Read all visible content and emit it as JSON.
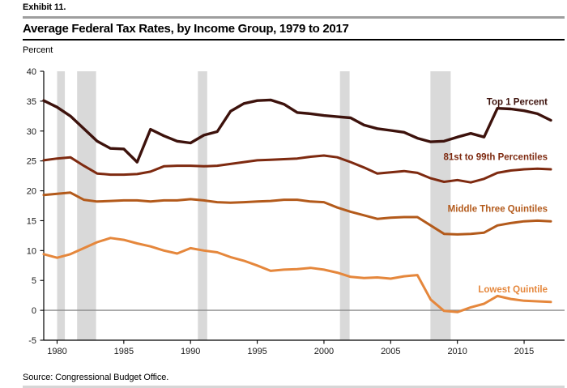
{
  "page": {
    "exhibit_label": "Exhibit 11.",
    "title": "Average Federal Tax Rates, by Income Group, 1979 to 2017",
    "unit_label": "Percent",
    "source": "Source: Congressional Budget Office."
  },
  "colors": {
    "axis": "#000000",
    "tick_text": "#1a1a1a",
    "zero_line": "#8c8c8c",
    "recession_band": "#d9d9d9",
    "header_rule_gray": "#9e9e9e",
    "header_rule_black": "#000000"
  },
  "chart_data": {
    "type": "line",
    "title": "Average Federal Tax Rates, by Income Group, 1979 to 2017",
    "xlabel": "",
    "ylabel": "Percent",
    "xlim": [
      1979,
      2017
    ],
    "ylim": [
      -5,
      40
    ],
    "xticks": [
      1980,
      1985,
      1990,
      1995,
      2000,
      2005,
      2010,
      2015
    ],
    "yticks": [
      -5,
      0,
      5,
      10,
      15,
      20,
      25,
      30,
      35,
      40
    ],
    "grid": false,
    "zero_line": true,
    "legend_position": "inline-right",
    "recession_bands": [
      [
        1980.0,
        1980.58
      ],
      [
        1981.5,
        1982.92
      ],
      [
        1990.55,
        1991.25
      ],
      [
        2001.2,
        2001.92
      ],
      [
        2007.98,
        2009.5
      ]
    ],
    "x": [
      1979,
      1980,
      1981,
      1982,
      1983,
      1984,
      1985,
      1986,
      1987,
      1988,
      1989,
      1990,
      1991,
      1992,
      1993,
      1994,
      1995,
      1996,
      1997,
      1998,
      1999,
      2000,
      2001,
      2002,
      2003,
      2004,
      2005,
      2006,
      2007,
      2008,
      2009,
      2010,
      2011,
      2012,
      2013,
      2014,
      2015,
      2016,
      2017
    ],
    "series": [
      {
        "name": "Top 1 Percent",
        "color": "#3d120c",
        "line_width": 3.4,
        "values": [
          35.1,
          34.0,
          32.5,
          30.4,
          28.3,
          27.1,
          27.0,
          24.8,
          30.3,
          29.2,
          28.3,
          28.0,
          29.3,
          29.9,
          33.3,
          34.6,
          35.1,
          35.2,
          34.5,
          33.1,
          32.9,
          32.6,
          32.4,
          32.2,
          31.0,
          30.4,
          30.1,
          29.8,
          28.8,
          28.2,
          28.3,
          29.0,
          29.6,
          29.0,
          33.8,
          33.7,
          33.4,
          32.9,
          31.8
        ]
      },
      {
        "name": "81st to 99th Percentiles",
        "color": "#7e2a10",
        "line_width": 3.0,
        "values": [
          25.1,
          25.4,
          25.6,
          24.2,
          22.9,
          22.7,
          22.7,
          22.8,
          23.2,
          24.1,
          24.2,
          24.2,
          24.1,
          24.2,
          24.5,
          24.8,
          25.1,
          25.2,
          25.3,
          25.4,
          25.7,
          25.9,
          25.6,
          24.8,
          23.9,
          22.9,
          23.1,
          23.3,
          23.0,
          22.1,
          21.5,
          21.8,
          21.4,
          22.0,
          23.0,
          23.4,
          23.6,
          23.7,
          23.6
        ]
      },
      {
        "name": "Middle Three Quintiles",
        "color": "#b35a1b",
        "line_width": 3.0,
        "values": [
          19.3,
          19.5,
          19.7,
          18.5,
          18.2,
          18.3,
          18.4,
          18.4,
          18.2,
          18.4,
          18.4,
          18.6,
          18.4,
          18.1,
          18.0,
          18.1,
          18.2,
          18.3,
          18.5,
          18.5,
          18.2,
          18.1,
          17.2,
          16.5,
          15.9,
          15.3,
          15.5,
          15.6,
          15.6,
          14.2,
          12.8,
          12.7,
          12.8,
          13.0,
          14.2,
          14.6,
          14.9,
          15.0,
          14.9
        ]
      },
      {
        "name": "Lowest Quintile",
        "color": "#e5873c",
        "line_width": 3.0,
        "values": [
          9.4,
          8.8,
          9.4,
          10.4,
          11.4,
          12.1,
          11.8,
          11.2,
          10.7,
          10.0,
          9.5,
          10.4,
          10.0,
          9.7,
          8.9,
          8.3,
          7.5,
          6.6,
          6.8,
          6.9,
          7.1,
          6.8,
          6.3,
          5.6,
          5.4,
          5.5,
          5.3,
          5.7,
          5.9,
          1.8,
          -0.1,
          -0.3,
          0.5,
          1.1,
          2.4,
          1.9,
          1.6,
          1.5,
          1.4
        ]
      }
    ]
  }
}
